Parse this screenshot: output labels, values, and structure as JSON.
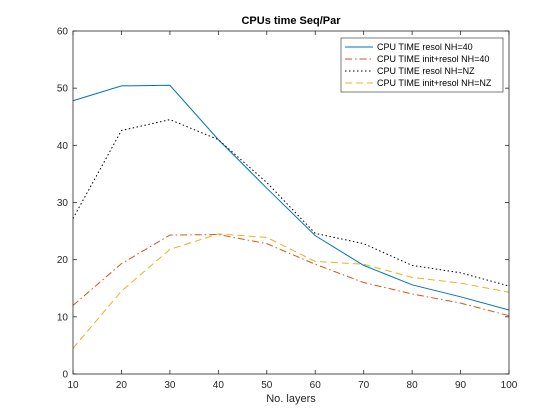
{
  "chart_data": {
    "type": "line",
    "title": "CPUs time Seq/Par",
    "xlabel": "No. layers",
    "ylabel": "",
    "xlim": [
      10,
      100
    ],
    "ylim": [
      0,
      60
    ],
    "xticks": [
      "10",
      "20",
      "30",
      "40",
      "50",
      "60",
      "70",
      "80",
      "90",
      "100"
    ],
    "yticks": [
      "0",
      "10",
      "20",
      "30",
      "40",
      "50",
      "60"
    ],
    "grid": false,
    "legend_position": "top-right",
    "x": [
      10,
      20,
      30,
      40,
      50,
      60,
      70,
      80,
      90,
      100
    ],
    "series": [
      {
        "name": "CPU TIME resol NH=40",
        "color": "#0072BD",
        "style": "solid",
        "values": [
          47.8,
          50.4,
          50.5,
          41.0,
          32.5,
          24.2,
          19.0,
          15.6,
          13.5,
          11.2
        ]
      },
      {
        "name": "CPU TIME init+resol NH=40",
        "color": "#D95319",
        "style": "dashdot",
        "values": [
          12.0,
          19.3,
          24.3,
          24.4,
          22.8,
          19.2,
          16.0,
          14.0,
          12.4,
          10.2
        ]
      },
      {
        "name": "CPU TIME resol NH=NZ",
        "color": "#000000",
        "style": "dotted",
        "values": [
          27.2,
          42.6,
          44.5,
          41.0,
          33.5,
          24.6,
          22.8,
          19.0,
          17.7,
          15.4
        ]
      },
      {
        "name": "CPU TIME init+resol NH=NZ",
        "color": "#EDB120",
        "style": "dashed",
        "values": [
          4.5,
          14.5,
          21.8,
          24.5,
          23.9,
          19.7,
          19.2,
          16.9,
          15.9,
          14.3
        ]
      }
    ]
  }
}
